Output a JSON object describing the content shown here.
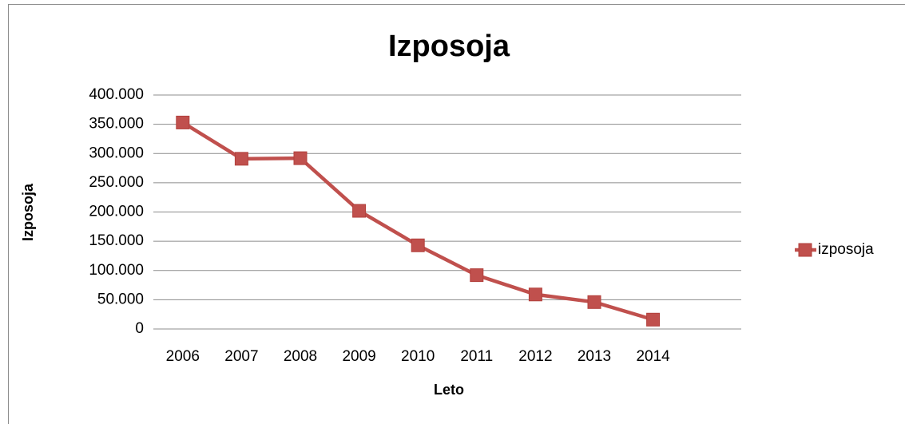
{
  "chart_data": {
    "type": "line",
    "title": "Izposoja",
    "x_label": "Leto",
    "y_label": "Izposoja",
    "categories": [
      "2006",
      "2007",
      "2008",
      "2009",
      "2010",
      "2011",
      "2012",
      "2013",
      "2014",
      null
    ],
    "series": [
      {
        "name": "izposoja",
        "color": "#c0504d",
        "values": [
          353000,
          291000,
          292000,
          202000,
          143000,
          92000,
          59000,
          46000,
          16000,
          null
        ]
      }
    ],
    "ylim": [
      0,
      400000
    ],
    "yticks": [
      0,
      {
        "value": 50000,
        "label": "50.000"
      },
      {
        "value": 100000,
        "label": "100.000"
      },
      {
        "value": 150000,
        "label": "150.000"
      },
      {
        "value": 200000,
        "label": "200.000"
      },
      {
        "value": 250000,
        "label": "250.000"
      },
      {
        "value": 300000,
        "label": "300.000"
      },
      {
        "value": 350000,
        "label": "350.000"
      },
      {
        "value": 400000,
        "label": "400.000"
      }
    ],
    "grid": true,
    "legend": "right"
  }
}
